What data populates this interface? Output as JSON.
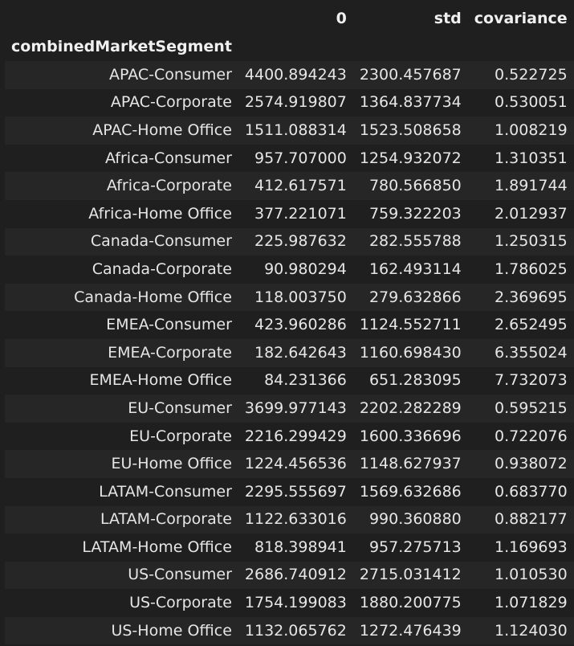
{
  "columns": [
    "",
    "0",
    "std",
    "covariance"
  ],
  "index_name": "combinedMarketSegment",
  "rows": [
    {
      "label": "APAC-Consumer",
      "v0": "4400.894243",
      "std": "2300.457687",
      "cov": "0.522725"
    },
    {
      "label": "APAC-Corporate",
      "v0": "2574.919807",
      "std": "1364.837734",
      "cov": "0.530051"
    },
    {
      "label": "APAC-Home Office",
      "v0": "1511.088314",
      "std": "1523.508658",
      "cov": "1.008219"
    },
    {
      "label": "Africa-Consumer",
      "v0": "957.707000",
      "std": "1254.932072",
      "cov": "1.310351"
    },
    {
      "label": "Africa-Corporate",
      "v0": "412.617571",
      "std": "780.566850",
      "cov": "1.891744"
    },
    {
      "label": "Africa-Home Office",
      "v0": "377.221071",
      "std": "759.322203",
      "cov": "2.012937"
    },
    {
      "label": "Canada-Consumer",
      "v0": "225.987632",
      "std": "282.555788",
      "cov": "1.250315"
    },
    {
      "label": "Canada-Corporate",
      "v0": "90.980294",
      "std": "162.493114",
      "cov": "1.786025"
    },
    {
      "label": "Canada-Home Office",
      "v0": "118.003750",
      "std": "279.632866",
      "cov": "2.369695"
    },
    {
      "label": "EMEA-Consumer",
      "v0": "423.960286",
      "std": "1124.552711",
      "cov": "2.652495"
    },
    {
      "label": "EMEA-Corporate",
      "v0": "182.642643",
      "std": "1160.698430",
      "cov": "6.355024"
    },
    {
      "label": "EMEA-Home Office",
      "v0": "84.231366",
      "std": "651.283095",
      "cov": "7.732073"
    },
    {
      "label": "EU-Consumer",
      "v0": "3699.977143",
      "std": "2202.282289",
      "cov": "0.595215"
    },
    {
      "label": "EU-Corporate",
      "v0": "2216.299429",
      "std": "1600.336696",
      "cov": "0.722076"
    },
    {
      "label": "EU-Home Office",
      "v0": "1224.456536",
      "std": "1148.627937",
      "cov": "0.938072"
    },
    {
      "label": "LATAM-Consumer",
      "v0": "2295.555697",
      "std": "1569.632686",
      "cov": "0.683770"
    },
    {
      "label": "LATAM-Corporate",
      "v0": "1122.633016",
      "std": "990.360880",
      "cov": "0.882177"
    },
    {
      "label": "LATAM-Home Office",
      "v0": "818.398941",
      "std": "957.275713",
      "cov": "1.169693"
    },
    {
      "label": "US-Consumer",
      "v0": "2686.740912",
      "std": "2715.031412",
      "cov": "1.010530"
    },
    {
      "label": "US-Corporate",
      "v0": "1754.199083",
      "std": "1880.200775",
      "cov": "1.071829"
    },
    {
      "label": "US-Home Office",
      "v0": "1132.065762",
      "std": "1272.476439",
      "cov": "1.124030"
    }
  ]
}
